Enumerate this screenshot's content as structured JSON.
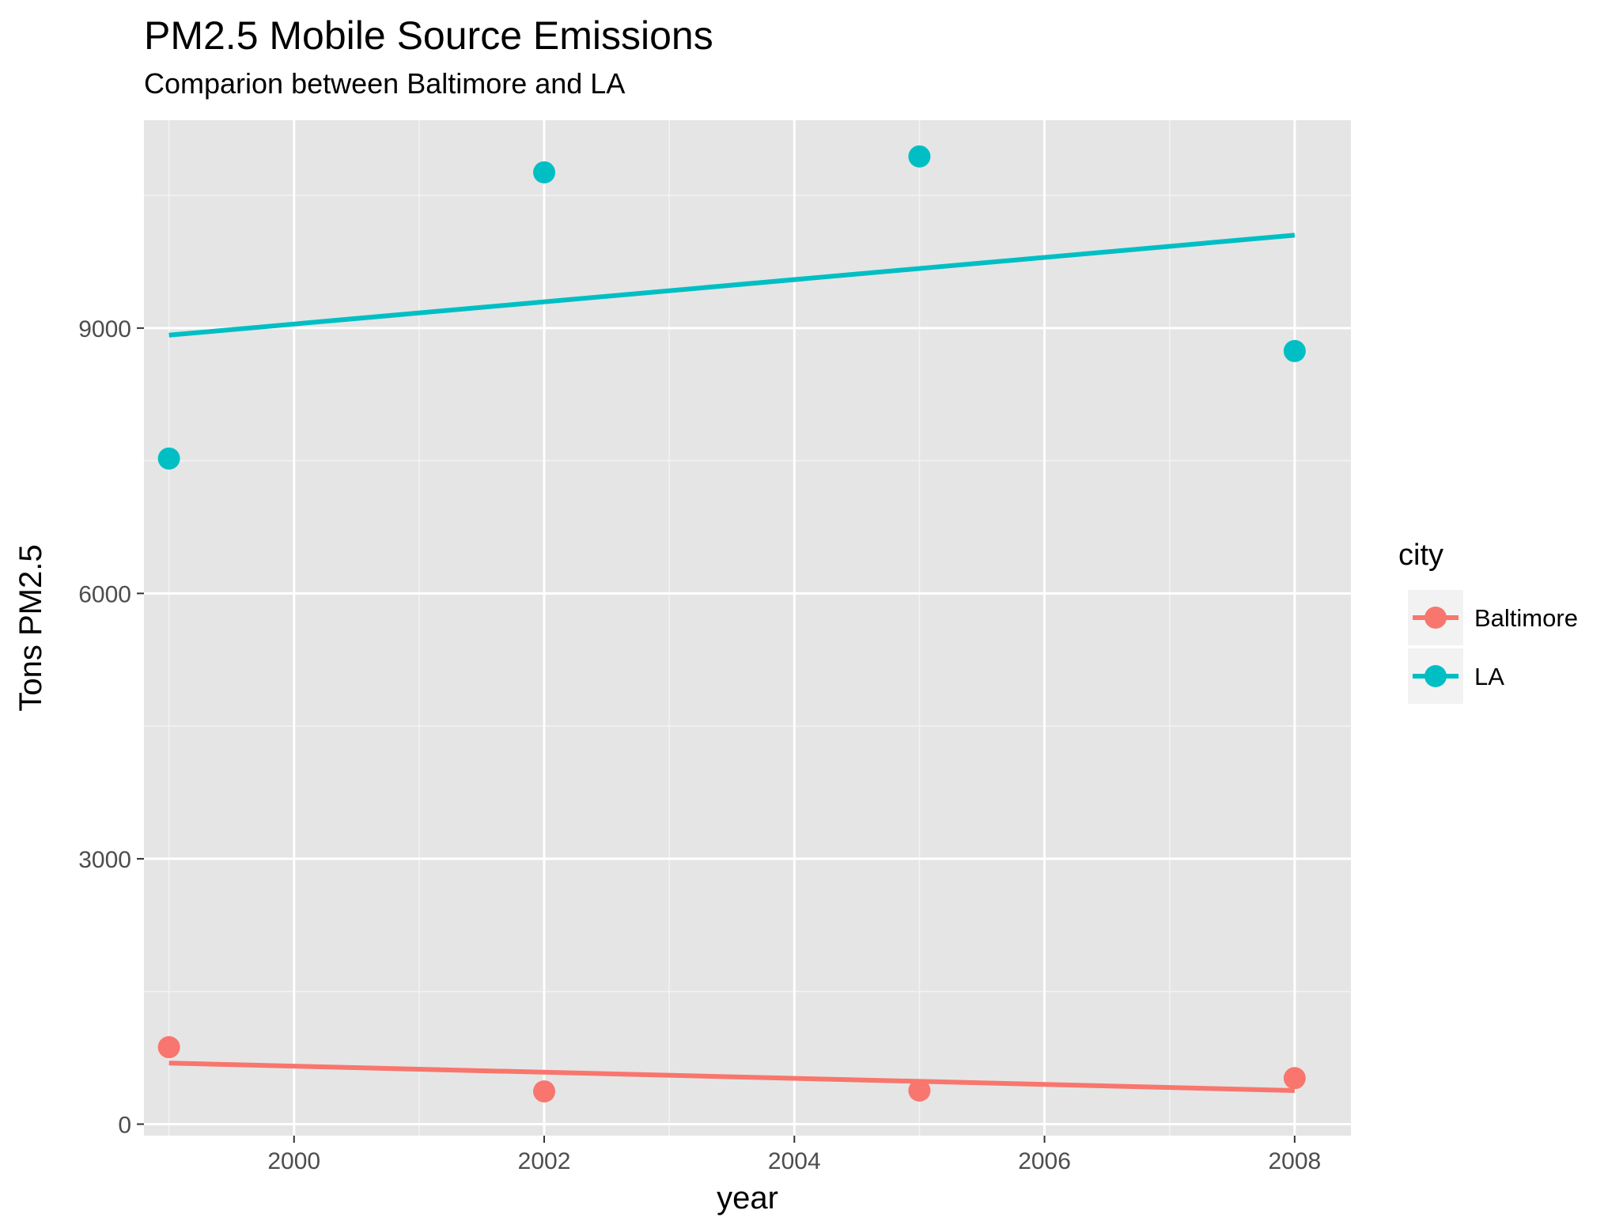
{
  "chart_data": {
    "type": "scatter",
    "title": "PM2.5 Mobile Source Emissions",
    "subtitle": "Comparion between Baltimore and LA",
    "xlabel": "year",
    "ylabel": "Tons PM2.5",
    "xlim": [
      1998.8,
      2008.45
    ],
    "ylim": [
      -130,
      11350
    ],
    "x_ticks": [
      2000,
      2002,
      2004,
      2006,
      2008
    ],
    "y_ticks": [
      0,
      3000,
      6000,
      9000
    ],
    "grid": true,
    "legend_position": "right",
    "legend_title": "city",
    "series": [
      {
        "name": "Baltimore",
        "color": "#F8766D",
        "x": [
          1999,
          2002,
          2005,
          2008
        ],
        "values": [
          870,
          370,
          380,
          520
        ],
        "trend": {
          "x": [
            1999,
            2008
          ],
          "y": [
            690,
            380
          ]
        }
      },
      {
        "name": "LA",
        "color": "#00BFC4",
        "x": [
          1999,
          2002,
          2005,
          2008
        ],
        "values": [
          7525,
          10760,
          10940,
          8740
        ],
        "trend": {
          "x": [
            1999,
            2008
          ],
          "y": [
            8920,
            10050
          ]
        }
      }
    ]
  }
}
